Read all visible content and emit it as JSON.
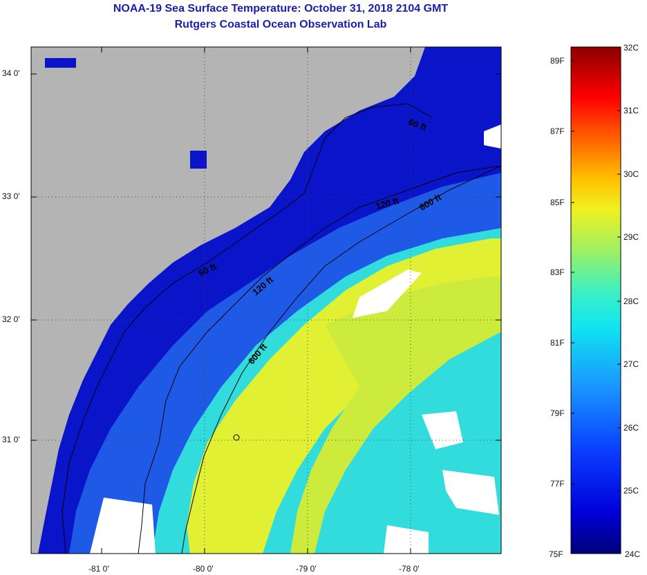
{
  "header": {
    "title": "NOAA-19 Sea Surface Temperature:  October 31, 2018 2104 GMT",
    "subtitle": "Rutgers Coastal Ocean Observation Lab"
  },
  "map": {
    "lat_labels": [
      "34 0'",
      "33 0'",
      "32 0'",
      "31 0'"
    ],
    "lon_labels": [
      "-81 0'",
      "-80 0'",
      "-79 0'",
      "-78 0'"
    ],
    "contours": [
      {
        "label": "60 ft"
      },
      {
        "label": "60 ft"
      },
      {
        "label": "120 ft"
      },
      {
        "label": "120 ft"
      },
      {
        "label": "600 ft"
      },
      {
        "label": "600 ft"
      }
    ],
    "colors": {
      "land": "#b4b4b4",
      "cloud": "#ffffff",
      "deep_blue": "#0a14c8",
      "mid_blue": "#1e5ae6",
      "cyan": "#32dcdc",
      "yellow": "#e1f032"
    }
  },
  "colorbar": {
    "celsius_labels": [
      "32C",
      "31C",
      "30C",
      "29C",
      "28C",
      "27C",
      "26C",
      "25C",
      "24C"
    ],
    "fahrenheit_labels": [
      "89F",
      "87F",
      "85F",
      "83F",
      "81F",
      "79F",
      "77F",
      "75F"
    ]
  }
}
